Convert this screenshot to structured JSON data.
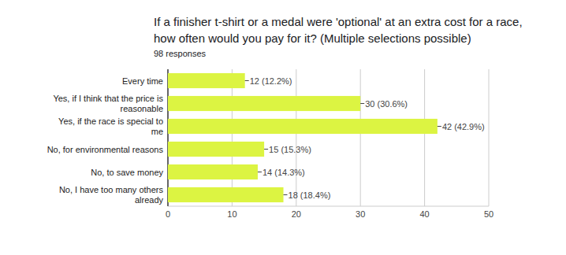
{
  "chart_data": {
    "type": "bar",
    "orientation": "horizontal",
    "title": "If a finisher t-shirt or a medal were 'optional' at an extra cost for a race, how often would you pay for it? (Multiple selections possible)",
    "subtitle": "98 responses",
    "categories": [
      "Every time",
      "Yes, if I think that the price is reasonable",
      "Yes, if the race is special to me",
      "No, for environmental reasons",
      "No, to save money",
      "No, I have too many others already"
    ],
    "values": [
      12,
      30,
      42,
      15,
      14,
      18
    ],
    "value_labels": [
      "12 (12.2%)",
      "30 (30.6%)",
      "42 (42.9%)",
      "15 (15.3%)",
      "14 (14.3%)",
      "18 (18.4%)"
    ],
    "color": "#dcf442",
    "xlim": [
      0,
      50
    ],
    "xticks": [
      0,
      10,
      20,
      30,
      40,
      50
    ],
    "grid": true,
    "data_labels": true
  }
}
